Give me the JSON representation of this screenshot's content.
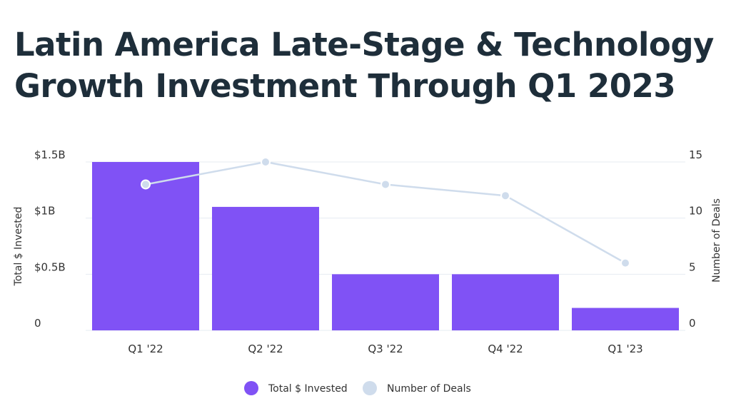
{
  "title": {
    "line1": "Latin America Late-Stage & Technology",
    "line2": "Growth Investment Through Q1 2023"
  },
  "colors": {
    "bar": "#8052f5",
    "line": "#cfdcec",
    "grid": "#e6ebf2",
    "title": "#1e2e3a"
  },
  "chart_data": {
    "type": "bar",
    "categories": [
      "Q1 '22",
      "Q2 '22",
      "Q3 '22",
      "Q4 '22",
      "Q1 '23"
    ],
    "series": [
      {
        "name": "Total $ Invested",
        "type": "bar",
        "axis": "left",
        "values": [
          1.5,
          1.1,
          0.5,
          0.5,
          0.2
        ]
      },
      {
        "name": "Number of Deals",
        "type": "line",
        "axis": "right",
        "values": [
          13,
          15,
          13,
          12,
          6
        ]
      }
    ],
    "y_left": {
      "label": "Total $ Invested",
      "ylim": [
        0,
        1.5
      ],
      "ticks": [
        0,
        0.5,
        1,
        1.5
      ],
      "tick_labels": [
        "0",
        "$0.5B",
        "$1B",
        "$1.5B"
      ]
    },
    "y_right": {
      "label": "Number of Deals",
      "ylim": [
        0,
        15
      ],
      "ticks": [
        0,
        5,
        10,
        15
      ],
      "tick_labels": [
        "0",
        "5",
        "10",
        "15"
      ]
    },
    "grid": true,
    "legend": "bottom-center"
  }
}
